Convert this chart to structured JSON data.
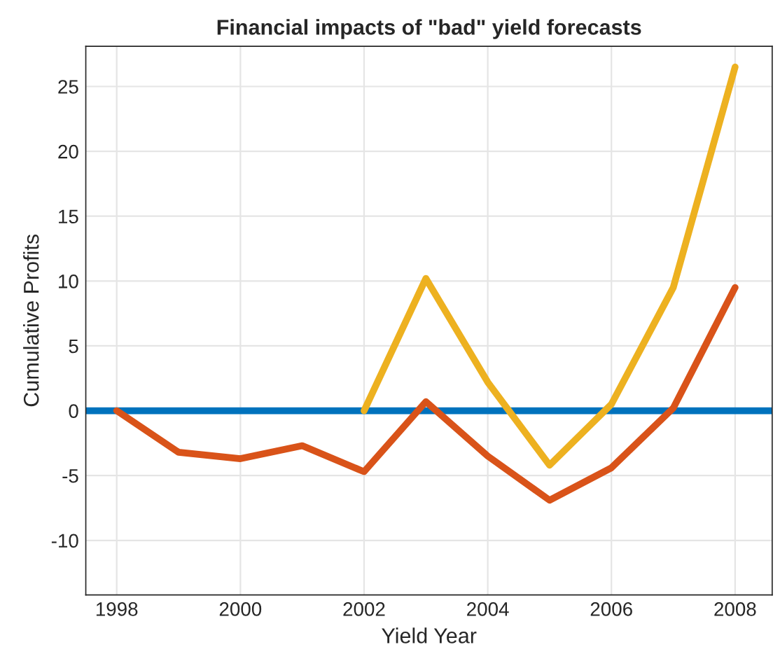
{
  "chart_data": {
    "type": "line",
    "title": "Financial impacts of \"bad\" yield forecasts",
    "xlabel": "Yield Year",
    "ylabel": "Cumulative Profits",
    "xlim": [
      1997.5,
      2008.6
    ],
    "xticks": [
      1998,
      2000,
      2002,
      2004,
      2006,
      2008
    ],
    "ylim": [
      -14.2,
      28.1
    ],
    "yticks": [
      -10,
      -5,
      0,
      5,
      10,
      15,
      20,
      25
    ],
    "grid": true,
    "marker": "none",
    "line_style": "solid",
    "ref_lines": [
      {
        "axis": "y",
        "value": 0,
        "label": null,
        "color": "#0072bd"
      }
    ],
    "series": [
      {
        "color": "#d95319",
        "x": [
          1998,
          1999,
          2000,
          2001,
          2002,
          2003,
          2004,
          2005,
          2006,
          2007,
          2008
        ],
        "values": [
          0,
          -3.2,
          -3.7,
          -2.7,
          -4.7,
          0.7,
          -3.5,
          -6.9,
          -4.4,
          0.2,
          9.5
        ]
      },
      {
        "color": "#edb120",
        "x": [
          2002,
          2003,
          2004,
          2005,
          2006,
          2007,
          2008
        ],
        "values": [
          0,
          10.2,
          2.2,
          -4.2,
          0.5,
          9.5,
          26.5
        ]
      }
    ]
  }
}
